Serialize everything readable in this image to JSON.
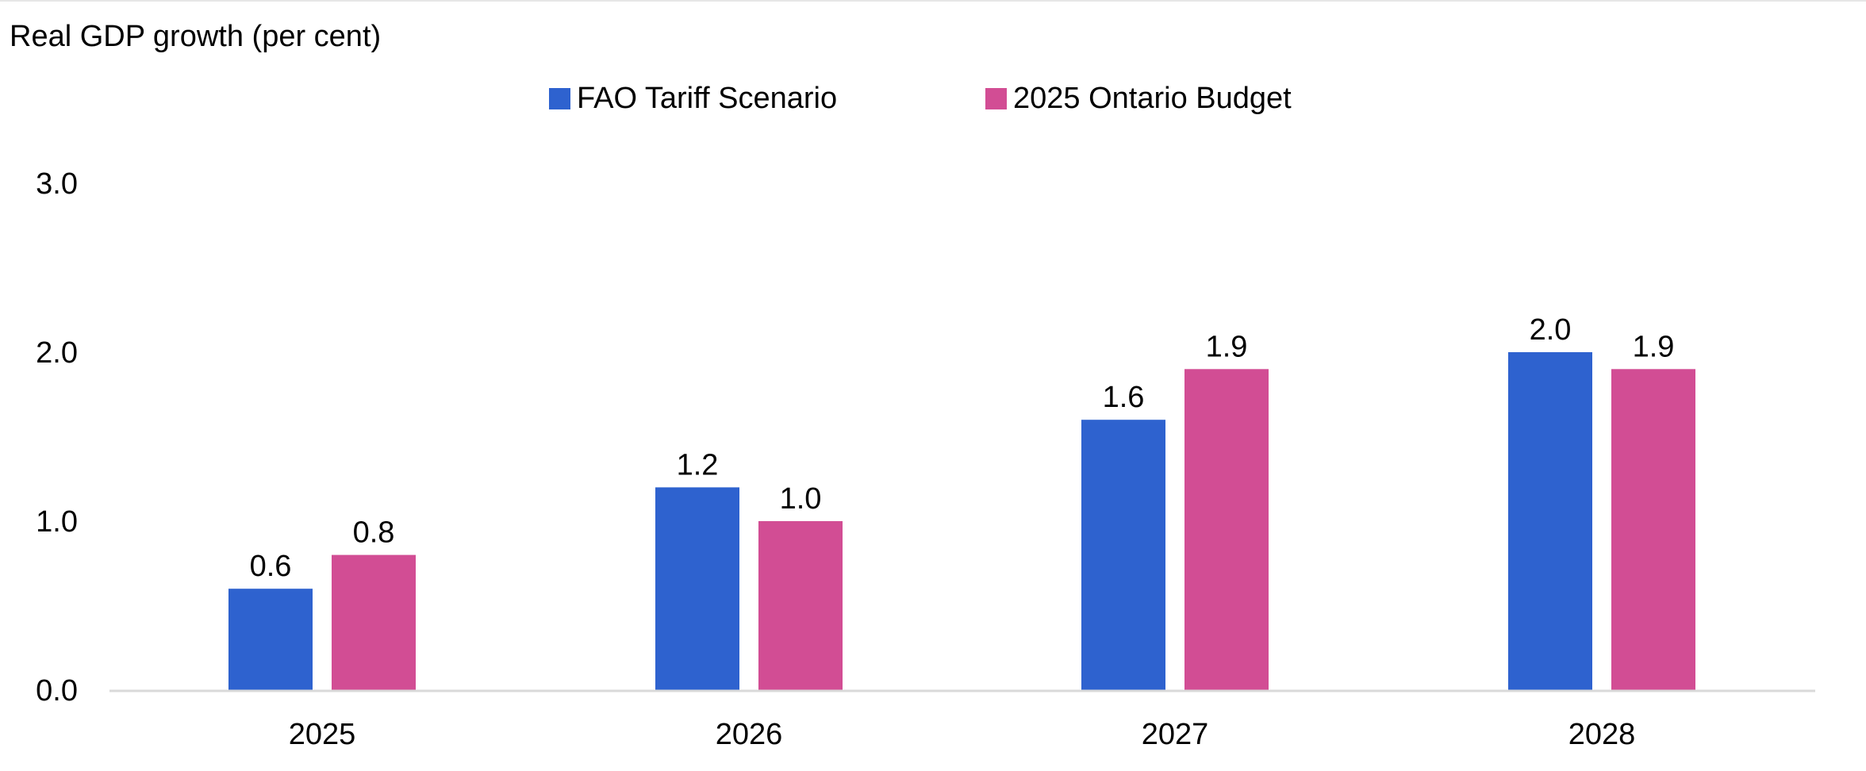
{
  "chart_data": {
    "type": "bar",
    "ylabel": "Real GDP growth (per cent)",
    "categories": [
      "2025",
      "2026",
      "2027",
      "2028"
    ],
    "series": [
      {
        "name": "FAO Tariff Scenario",
        "color": "#2e62cf",
        "values": [
          0.6,
          1.2,
          1.6,
          2.0
        ],
        "labels": [
          "0.6",
          "1.2",
          "1.6",
          "2.0"
        ]
      },
      {
        "name": "2025 Ontario Budget",
        "color": "#d24d94",
        "values": [
          0.8,
          1.0,
          1.9,
          1.9
        ],
        "labels": [
          "0.8",
          "1.0",
          "1.9",
          "1.9"
        ]
      }
    ],
    "ylim": [
      0,
      3.0
    ],
    "yticks": [
      "0.0",
      "1.0",
      "2.0",
      "3.0"
    ],
    "grid": false,
    "legend": "top-center",
    "axis_color": "#d9d9d9"
  }
}
